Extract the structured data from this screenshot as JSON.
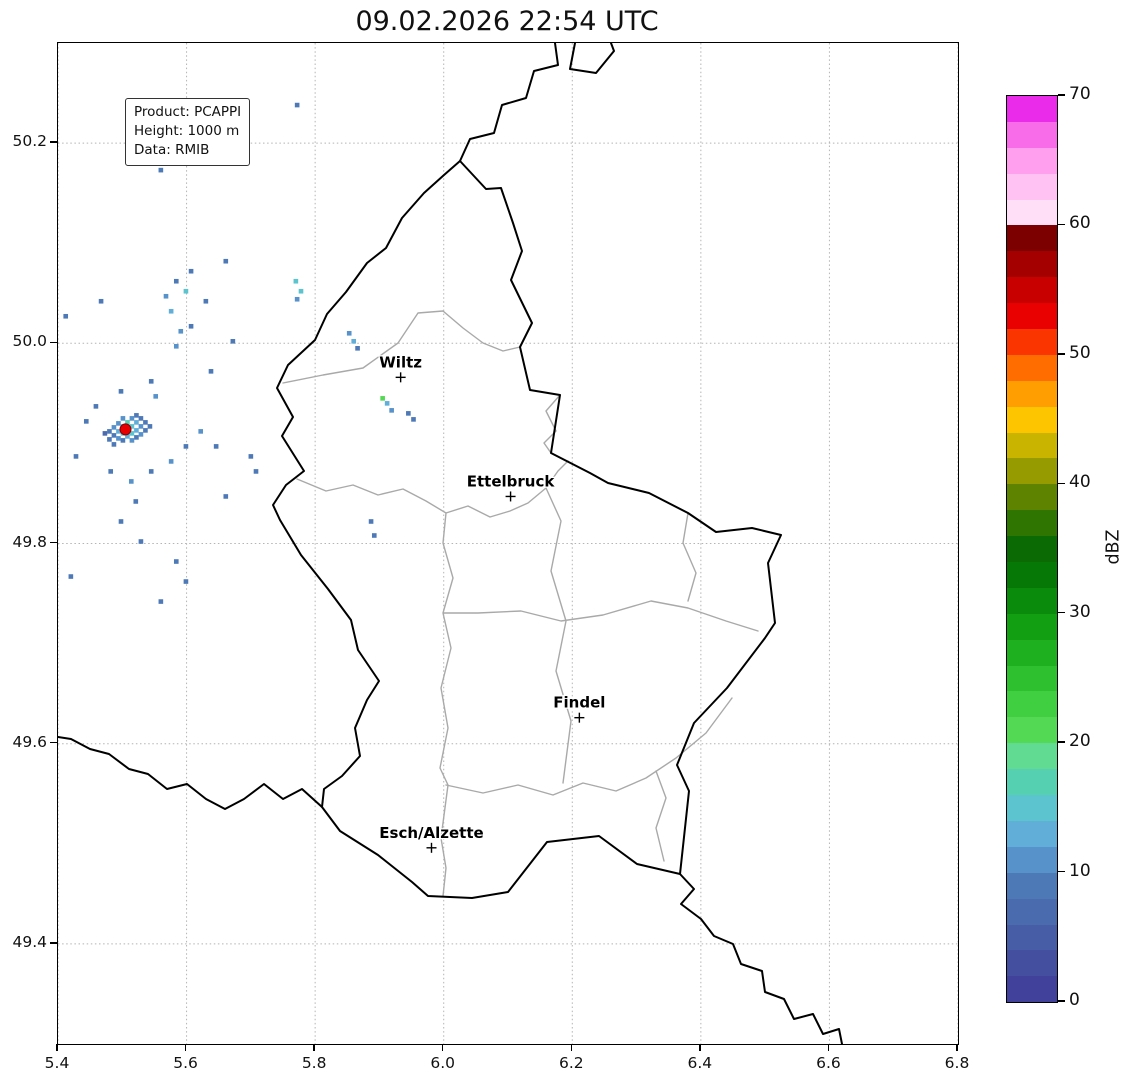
{
  "title": "09.02.2026 22:54 UTC",
  "info_box": {
    "lines": [
      "Product: PCAPPI",
      "Height: 1000 m",
      "Data: RMIB"
    ]
  },
  "chart_data": {
    "type": "heatmap",
    "title": "09.02.2026 22:54 UTC",
    "xlabel": "",
    "ylabel": "",
    "xlim": [
      5.4,
      6.8
    ],
    "ylim": [
      49.3,
      50.3
    ],
    "xticks": [
      5.4,
      5.6,
      5.8,
      6.0,
      6.2,
      6.4,
      6.6,
      6.8
    ],
    "yticks": [
      49.4,
      49.6,
      49.8,
      50.0,
      50.2
    ],
    "grid": "dotted",
    "colorbar": {
      "label": "dBZ",
      "min": 0,
      "max": 70,
      "band_step": 2,
      "ticks": [
        0,
        10,
        20,
        30,
        40,
        50,
        60,
        70
      ],
      "colors": [
        "#41419b",
        "#44509f",
        "#475ea6",
        "#4a6bae",
        "#4d79b7",
        "#5792cb",
        "#61aed9",
        "#5cc4cf",
        "#55d1b1",
        "#61db91",
        "#54d954",
        "#40cf40",
        "#2ec02e",
        "#1eb01e",
        "#12a012",
        "#0b8b0b",
        "#067806",
        "#0b6a04",
        "#2e7502",
        "#5d8301",
        "#969b00",
        "#c9b400",
        "#fdc500",
        "#ff9e00",
        "#ff6d00",
        "#fb3500",
        "#e90000",
        "#c90000",
        "#a40000",
        "#7d0000",
        "#ffdef8",
        "#ffc2f3",
        "#ff9fee",
        "#f96ce9",
        "#ea2bea"
      ]
    },
    "cities": [
      {
        "name": "Wiltz",
        "lon": 5.933,
        "lat": 49.966
      },
      {
        "name": "Ettelbruck",
        "lon": 6.104,
        "lat": 49.847
      },
      {
        "name": "Findel",
        "lon": 6.211,
        "lat": 49.626
      },
      {
        "name": "Esch/Alzette",
        "lon": 5.981,
        "lat": 49.496
      }
    ],
    "radar_site": {
      "lon": 5.505,
      "lat": 49.914,
      "color": "#e60000"
    },
    "pixel_deg": [
      0.0072,
      0.0046
    ],
    "echoes": [
      [
        5.473,
        49.91,
        7
      ],
      [
        5.48,
        49.912,
        9
      ],
      [
        5.48,
        49.904,
        8
      ],
      [
        5.487,
        49.916,
        10
      ],
      [
        5.487,
        49.908,
        9
      ],
      [
        5.487,
        49.899,
        8
      ],
      [
        5.494,
        49.92,
        11
      ],
      [
        5.494,
        49.912,
        13
      ],
      [
        5.494,
        49.905,
        10
      ],
      [
        5.501,
        49.925,
        10
      ],
      [
        5.501,
        49.917,
        15
      ],
      [
        5.501,
        49.91,
        14
      ],
      [
        5.501,
        49.903,
        9
      ],
      [
        5.508,
        49.921,
        16
      ],
      [
        5.508,
        49.914,
        15
      ],
      [
        5.508,
        49.907,
        12
      ],
      [
        5.515,
        49.925,
        11
      ],
      [
        5.515,
        49.917,
        14
      ],
      [
        5.515,
        49.91,
        15
      ],
      [
        5.515,
        49.903,
        10
      ],
      [
        5.522,
        49.928,
        9
      ],
      [
        5.522,
        49.921,
        12
      ],
      [
        5.522,
        49.913,
        13
      ],
      [
        5.522,
        49.906,
        9
      ],
      [
        5.529,
        49.925,
        8
      ],
      [
        5.529,
        49.917,
        10
      ],
      [
        5.529,
        49.909,
        11
      ],
      [
        5.536,
        49.921,
        9
      ],
      [
        5.536,
        49.913,
        8
      ],
      [
        5.543,
        49.917,
        8
      ],
      [
        5.56,
        50.173,
        9
      ],
      [
        5.772,
        50.238,
        8
      ],
      [
        5.412,
        50.027,
        8
      ],
      [
        5.467,
        50.042,
        9
      ],
      [
        5.568,
        50.047,
        10
      ],
      [
        5.576,
        50.032,
        12
      ],
      [
        5.591,
        50.012,
        11
      ],
      [
        5.607,
        50.017,
        9
      ],
      [
        5.584,
        49.997,
        10
      ],
      [
        5.607,
        50.072,
        9
      ],
      [
        5.584,
        50.062,
        8
      ],
      [
        5.599,
        50.052,
        14
      ],
      [
        5.63,
        50.042,
        9
      ],
      [
        5.661,
        50.082,
        8
      ],
      [
        5.77,
        50.062,
        14
      ],
      [
        5.778,
        50.052,
        15
      ],
      [
        5.772,
        50.044,
        10
      ],
      [
        5.853,
        50.01,
        11
      ],
      [
        5.86,
        50.002,
        12
      ],
      [
        5.866,
        49.995,
        9
      ],
      [
        5.545,
        49.962,
        9
      ],
      [
        5.552,
        49.947,
        10
      ],
      [
        5.498,
        49.952,
        8
      ],
      [
        5.459,
        49.937,
        9
      ],
      [
        5.444,
        49.922,
        8
      ],
      [
        5.428,
        49.887,
        8
      ],
      [
        5.482,
        49.872,
        9
      ],
      [
        5.514,
        49.862,
        10
      ],
      [
        5.545,
        49.872,
        9
      ],
      [
        5.576,
        49.882,
        10
      ],
      [
        5.599,
        49.897,
        9
      ],
      [
        5.622,
        49.912,
        10
      ],
      [
        5.646,
        49.897,
        8
      ],
      [
        5.638,
        49.972,
        9
      ],
      [
        5.672,
        50.002,
        8
      ],
      [
        5.7,
        49.887,
        9
      ],
      [
        5.708,
        49.872,
        8
      ],
      [
        5.661,
        49.847,
        8
      ],
      [
        5.521,
        49.842,
        9
      ],
      [
        5.498,
        49.822,
        8
      ],
      [
        5.529,
        49.802,
        9
      ],
      [
        5.584,
        49.782,
        8
      ],
      [
        5.42,
        49.767,
        8
      ],
      [
        5.599,
        49.762,
        9
      ],
      [
        5.56,
        49.742,
        8
      ],
      [
        5.905,
        49.945,
        21
      ],
      [
        5.912,
        49.94,
        12
      ],
      [
        5.919,
        49.933,
        10
      ],
      [
        5.945,
        49.93,
        9
      ],
      [
        5.953,
        49.924,
        8
      ],
      [
        5.887,
        49.822,
        9
      ],
      [
        5.892,
        49.808,
        8
      ]
    ]
  }
}
